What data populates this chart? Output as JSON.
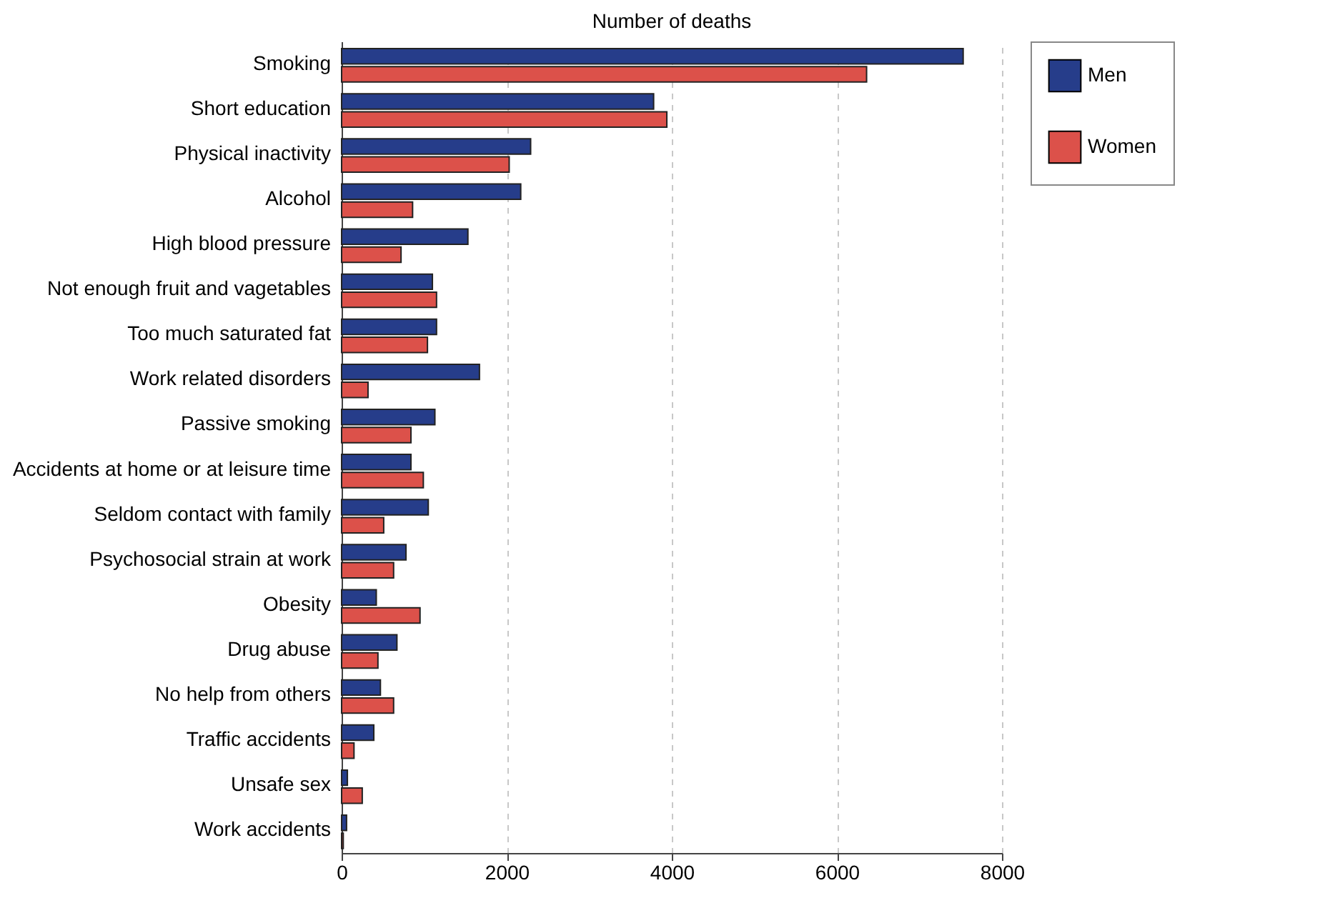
{
  "chart_data": {
    "type": "bar",
    "orientation": "horizontal",
    "title": "Number of deaths",
    "categories": [
      "Smoking",
      "Short education",
      "Physical inactivity",
      "Alcohol",
      "High blood pressure",
      "Not enough fruit and vagetables",
      "Too much saturated fat",
      "Work related disorders",
      "Passive smoking",
      "Accidents at home or at leisure time",
      "Seldom contact with family",
      "Psychosocial strain at work",
      "Obesity",
      "Drug abuse",
      "No help from others",
      "Traffic accidents",
      "Unsafe sex",
      "Work accidents"
    ],
    "series": [
      {
        "name": "Men",
        "color": "#263d8a",
        "values": [
          7530,
          3780,
          2290,
          2170,
          1530,
          1100,
          1150,
          1670,
          1130,
          840,
          1050,
          780,
          420,
          670,
          470,
          390,
          70,
          60
        ]
      },
      {
        "name": "Women",
        "color": "#dc514a",
        "values": [
          6360,
          3940,
          2030,
          860,
          720,
          1150,
          1040,
          320,
          840,
          990,
          510,
          630,
          950,
          440,
          630,
          150,
          250,
          20
        ]
      }
    ],
    "xlim": [
      0,
      8000
    ],
    "xticks": [
      0,
      2000,
      4000,
      6000,
      8000
    ],
    "grid": "x",
    "legend": "top right"
  }
}
